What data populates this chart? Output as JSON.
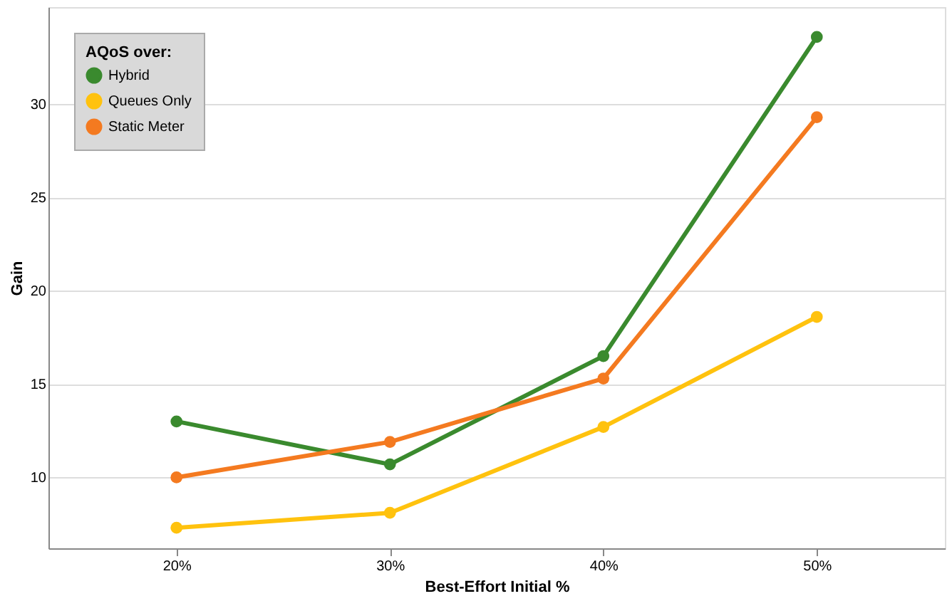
{
  "chart_data": {
    "type": "line",
    "xlabel": "Best-Effort Initial %",
    "ylabel": "Gain",
    "legend_title": "AQoS over:",
    "categories": [
      "20%",
      "30%",
      "40%",
      "50%"
    ],
    "series": [
      {
        "name": "Hybrid",
        "color": "#3a8a2e",
        "values": [
          13.0,
          10.7,
          16.5,
          33.6
        ]
      },
      {
        "name": "Queues Only",
        "color": "#ffc20e",
        "values": [
          7.3,
          8.1,
          12.7,
          18.6
        ]
      },
      {
        "name": "Static Meter",
        "color": "#f47a20",
        "values": [
          10.0,
          11.9,
          15.3,
          29.3
        ]
      }
    ],
    "ylim": [
      6.2,
      35.2
    ],
    "yticks": [
      10,
      15,
      20,
      25,
      30
    ],
    "grid": "y",
    "legend": "top left",
    "marker": "circle",
    "line_style": "solid"
  }
}
